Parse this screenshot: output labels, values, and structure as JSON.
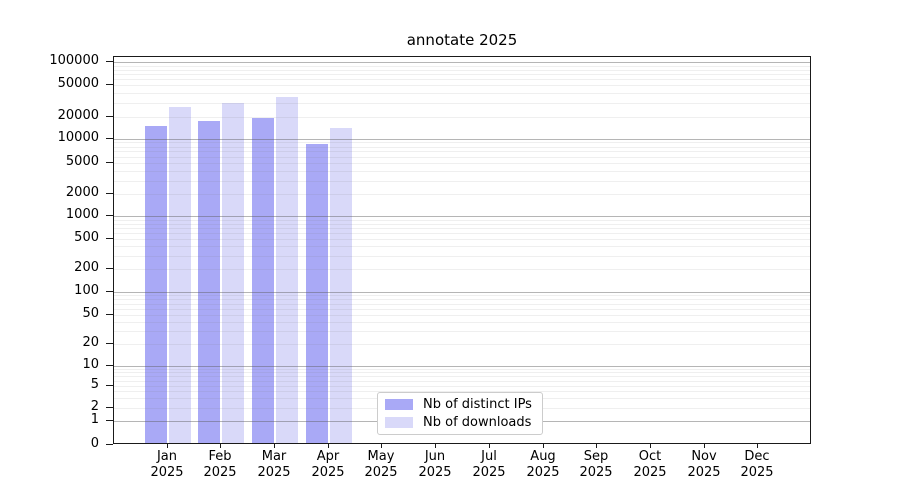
{
  "title": "annotate 2025",
  "chart_data": {
    "type": "bar",
    "title": "annotate 2025",
    "categories": [
      "Jan 2025",
      "Feb 2025",
      "Mar 2025",
      "Apr 2025",
      "May 2025",
      "Jun 2025",
      "Jul 2025",
      "Aug 2025",
      "Sep 2025",
      "Oct 2025",
      "Nov 2025",
      "Dec 2025"
    ],
    "series": [
      {
        "name": "Nb of distinct IPs",
        "color": "#a9a9f6",
        "values": [
          14200,
          16200,
          18300,
          8200,
          null,
          null,
          null,
          null,
          null,
          null,
          null,
          null
        ]
      },
      {
        "name": "Nb of downloads",
        "color": "#d9d9f9",
        "values": [
          25000,
          28000,
          33600,
          13300,
          null,
          null,
          null,
          null,
          null,
          null,
          null,
          null
        ]
      }
    ],
    "xlabel": "",
    "ylabel": "",
    "yscale": "symlog",
    "yticks": [
      0,
      1,
      2,
      5,
      10,
      20,
      50,
      100,
      200,
      500,
      1000,
      2000,
      5000,
      10000,
      20000,
      50000,
      100000
    ],
    "ylim": [
      0,
      116000
    ],
    "grid": true,
    "legend_position": "lower center"
  }
}
